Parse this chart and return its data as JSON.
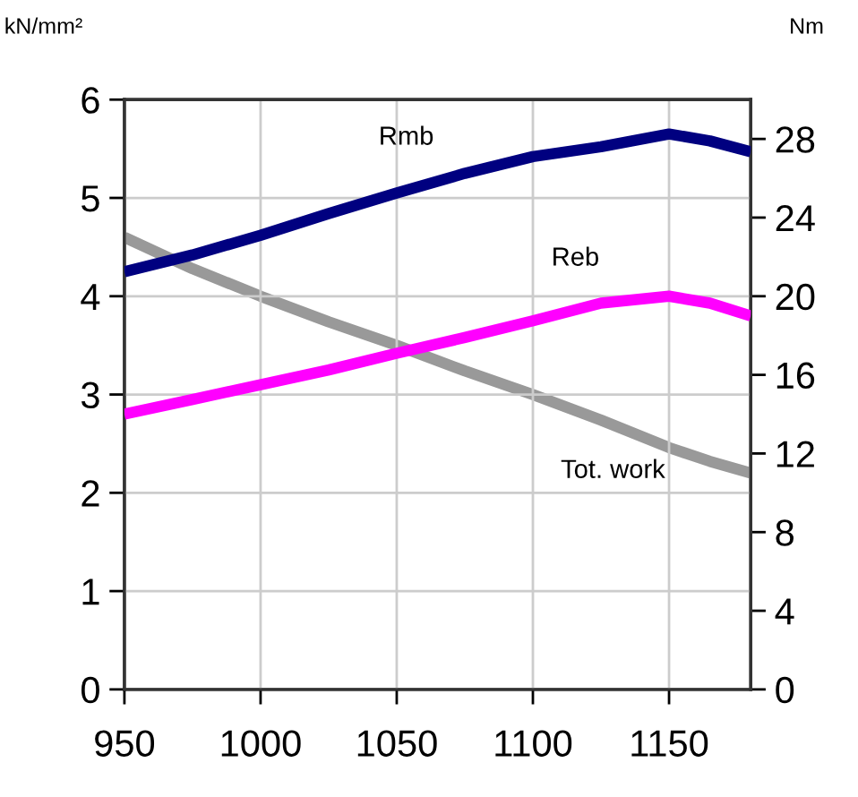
{
  "chart_data": {
    "type": "line",
    "x": [
      950,
      975,
      1000,
      1025,
      1050,
      1075,
      1100,
      1125,
      1150,
      1165,
      1180
    ],
    "series": [
      {
        "name": "Rmb",
        "color": "#000080",
        "values": [
          4.25,
          4.42,
          4.62,
          4.84,
          5.05,
          5.25,
          5.42,
          5.52,
          5.65,
          5.58,
          5.47
        ]
      },
      {
        "name": "Reb",
        "color": "#ff00ff",
        "values": [
          2.8,
          2.95,
          3.1,
          3.25,
          3.42,
          3.58,
          3.75,
          3.93,
          4.0,
          3.93,
          3.8
        ]
      },
      {
        "name": "Tot. work",
        "color": "#999999",
        "axis": "y2",
        "values": [
          23,
          21.4,
          20,
          18.7,
          17.5,
          16.2,
          15,
          13.7,
          12.3,
          11.6,
          11
        ]
      }
    ],
    "xlim": [
      950,
      1180
    ],
    "xticks": [
      950,
      1000,
      1050,
      1100,
      1150
    ],
    "ylim": [
      0,
      6
    ],
    "yticks": [
      0,
      1,
      2,
      3,
      4,
      5,
      6
    ],
    "y2lim": [
      0,
      30
    ],
    "y2ticks": [
      0,
      4,
      8,
      12,
      16,
      20,
      24,
      28
    ],
    "ylabel": "kN/mm²",
    "y2label": "Nm",
    "grid": true,
    "legend": false,
    "line_style": "solid",
    "marker": "none"
  }
}
